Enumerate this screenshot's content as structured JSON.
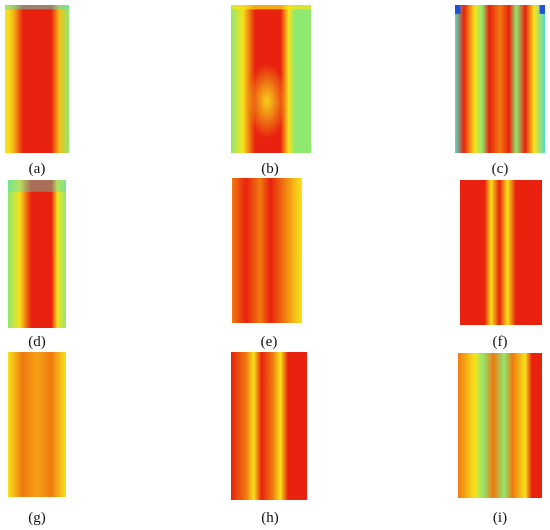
{
  "figure": {
    "panels": [
      {
        "id": "a",
        "caption": "(a)"
      },
      {
        "id": "b",
        "caption": "(b)"
      },
      {
        "id": "c",
        "caption": "(c)"
      },
      {
        "id": "d",
        "caption": "(d)"
      },
      {
        "id": "e",
        "caption": "(e)"
      },
      {
        "id": "f",
        "caption": "(f)"
      },
      {
        "id": "g",
        "caption": "(g)"
      },
      {
        "id": "h",
        "caption": "(h)"
      },
      {
        "id": "i",
        "caption": "(i)"
      }
    ],
    "colors": {
      "red": "#e8220e",
      "orange": "#f07a10",
      "yellow": "#f7e21a",
      "green": "#8fe870",
      "cyan": "#4fe0c8",
      "blue": "#2050e0"
    }
  }
}
